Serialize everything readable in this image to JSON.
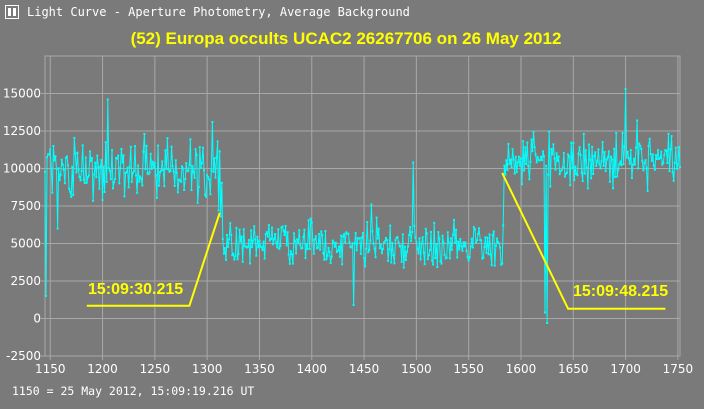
{
  "window": {
    "title": "Light Curve - Aperture Photometry, Average Background",
    "icon": "light-curve-app-icon"
  },
  "footer": {
    "note": "1150 = 25 May 2012, 15:09:19.216 UT"
  },
  "colors": {
    "background": "#7a7a7a",
    "grid": "#a8a8a8",
    "series": "#00ffff",
    "annotation": "#ffff00",
    "text": "#ffffff"
  },
  "chart_data": {
    "type": "line",
    "title": "(52) Europa occults UCAC2 26267706 on 26 May 2012",
    "xlabel": "",
    "ylabel": "",
    "xlim": [
      1145,
      1752
    ],
    "ylim": [
      -2500,
      17500
    ],
    "x_ticks": [
      1150,
      1200,
      1250,
      1300,
      1350,
      1400,
      1450,
      1500,
      1550,
      1600,
      1650,
      1700,
      1750
    ],
    "y_ticks": [
      -2500,
      0,
      2500,
      5000,
      7500,
      10000,
      12500,
      15000
    ],
    "grid": true,
    "series": [
      {
        "x_start": 1145,
        "x_end": 1752,
        "step": 1,
        "marker": "dot",
        "segments": [
          {
            "x_from": 1145,
            "x_to": 1315,
            "mean": 10000,
            "spread": 1200
          },
          {
            "x_from": 1316,
            "x_to": 1583,
            "mean": 5000,
            "spread": 1000
          },
          {
            "x_from": 1584,
            "x_to": 1752,
            "mean": 10400,
            "spread": 1200
          }
        ],
        "features": [
          {
            "x": 1146,
            "y": 1500
          },
          {
            "x": 1153,
            "y": 11500
          },
          {
            "x": 1157,
            "y": 6000
          },
          {
            "x": 1205,
            "y": 14600
          },
          {
            "x": 1305,
            "y": 13100
          },
          {
            "x": 1311,
            "y": 7200
          },
          {
            "x": 1313,
            "y": 6800
          },
          {
            "x": 1315,
            "y": 5300
          },
          {
            "x": 1440,
            "y": 900
          },
          {
            "x": 1457,
            "y": 7600
          },
          {
            "x": 1497,
            "y": 10400
          },
          {
            "x": 1583,
            "y": 6200
          },
          {
            "x": 1585,
            "y": 9600
          },
          {
            "x": 1623,
            "y": 400
          },
          {
            "x": 1625,
            "y": -300
          },
          {
            "x": 1628,
            "y": 8800
          },
          {
            "x": 1700,
            "y": 15300
          },
          {
            "x": 1711,
            "y": 13200
          }
        ]
      }
    ],
    "annotations": [
      {
        "label": "15:09:30.215",
        "line": [
          [
            1185,
            850
          ],
          [
            1283,
            850
          ],
          [
            1312,
            7050
          ]
        ]
      },
      {
        "label": "15:09:48.215",
        "line": [
          [
            1582,
            9700
          ],
          [
            1645,
            650
          ],
          [
            1738,
            650
          ]
        ]
      }
    ]
  }
}
